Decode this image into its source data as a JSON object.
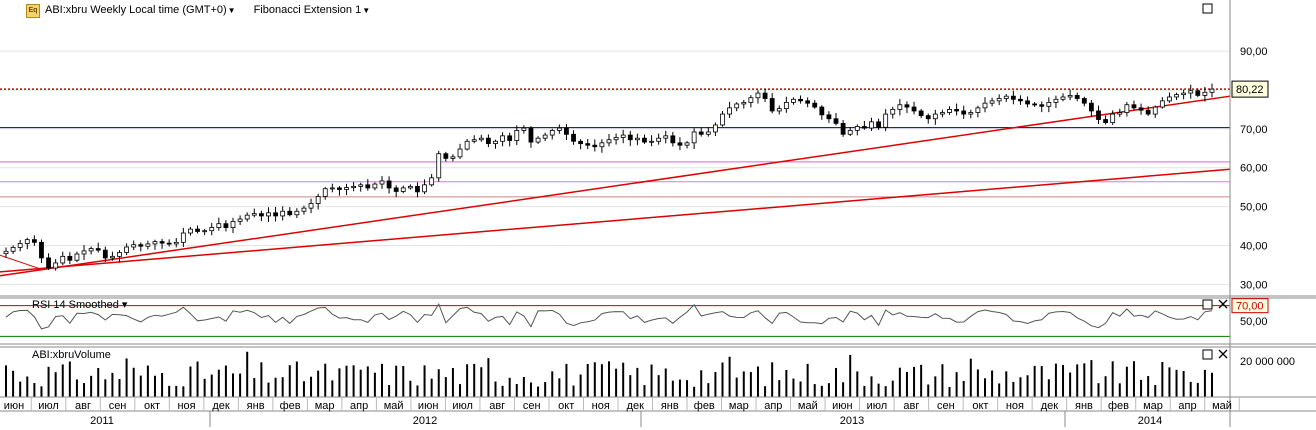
{
  "toolbar": {
    "logo_text": "Eq",
    "symbol_label": "ABI:xbru Weekly Local time (GMT+0)",
    "study_label": "Fibonacci Extension 1"
  },
  "colors": {
    "candle_body": "#000000",
    "fib_lines": [
      "#cc0000",
      "#000099",
      "#e060e0",
      "#d080d0",
      "#cc8888",
      "#66aa66"
    ],
    "trendline": "#dd0000",
    "price_marker": "#cc0000",
    "grid": "#e4e4e4",
    "rsi_line": "#555555",
    "rsi_ob": "#cc0000",
    "rsi_os": "#007700"
  },
  "price_panel": {
    "y_ticks": [
      "90,00",
      "80,00",
      "70,00",
      "60,00",
      "50,00",
      "40,00",
      "30,00"
    ],
    "last_price": "80,22",
    "fib_levels": [
      80.22,
      70.3,
      61.5,
      56.4,
      52.5
    ],
    "trendline_a": {
      "from": [
        "2011-07",
        33.5
      ],
      "to": [
        "2014-05",
        78.0
      ]
    },
    "trendline_b": {
      "from": [
        "2011-05",
        33.0
      ],
      "to": [
        "2014-05",
        59.5
      ]
    }
  },
  "rsi_panel": {
    "title": "RSI 14 Smoothed",
    "y_ticks": [
      "70,00",
      "50,00"
    ],
    "overbought": 70,
    "oversold": 30
  },
  "volume_panel": {
    "title": "ABI:xbruVolume",
    "y_ticks": [
      "20 000 000"
    ]
  },
  "time_axis": {
    "months": [
      "июн",
      "июл",
      "авг",
      "сен",
      "окт",
      "ноя",
      "дек",
      "янв",
      "фев",
      "мар",
      "апр",
      "май",
      "июн",
      "июл",
      "авг",
      "сен",
      "окт",
      "ноя",
      "дек",
      "янв",
      "фев",
      "мар",
      "апр",
      "май",
      "июн",
      "июл",
      "авг",
      "сен",
      "окт",
      "ноя",
      "дек",
      "янв",
      "фев",
      "мар",
      "апр",
      "май"
    ],
    "years": [
      "2011",
      "2012",
      "2013",
      "2014"
    ]
  },
  "chart_data": {
    "type": "candlestick",
    "title": "ABI:xbru Weekly",
    "ylim": [
      27,
      98
    ],
    "closes": [
      38.5,
      39.5,
      40.5,
      41.5,
      40.8,
      36.8,
      34.2,
      35.5,
      37.2,
      36.2,
      37.8,
      38.6,
      39.2,
      38.8,
      36.8,
      37.2,
      38.2,
      39.6,
      40.2,
      39.8,
      40.4,
      41.0,
      40.6,
      40.4,
      40.8,
      43.2,
      44.2,
      43.6,
      43.8,
      44.6,
      45.6,
      44.6,
      46.2,
      46.8,
      47.8,
      48.2,
      47.6,
      48.4,
      47.6,
      48.8,
      47.9,
      48.8,
      49.6,
      50.8,
      52.6,
      54.6,
      54.8,
      54.4,
      54.9,
      55.2,
      55.6,
      54.8,
      55.8,
      56.6,
      54.8,
      53.9,
      54.8,
      55.2,
      53.8,
      55.6,
      57.4,
      63.6,
      62.4,
      62.8,
      64.8,
      66.8,
      67.2,
      67.6,
      66.2,
      66.8,
      68.2,
      67.0,
      69.6,
      70.2,
      66.6,
      67.6,
      68.4,
      69.6,
      70.2,
      68.6,
      66.8,
      66.2,
      65.8,
      65.4,
      66.4,
      67.2,
      67.8,
      68.4,
      67.2,
      67.6,
      66.6,
      66.8,
      67.6,
      68.2,
      66.4,
      65.8,
      66.4,
      69.2,
      68.6,
      69.2,
      71.0,
      73.8,
      75.4,
      76.4,
      76.8,
      78.0,
      79.2,
      77.8,
      74.6,
      75.2,
      76.8,
      77.6,
      77.2,
      76.6,
      75.6,
      73.6,
      72.6,
      71.4,
      68.6,
      69.6,
      70.6,
      70.2,
      71.8,
      70.4,
      73.8,
      75.0,
      76.2,
      75.6,
      74.6,
      73.4,
      72.6,
      73.8,
      74.2,
      75.0,
      74.6,
      73.8,
      74.2,
      75.4,
      76.6,
      77.2,
      77.8,
      78.4,
      77.6,
      77.2,
      76.4,
      76.2,
      75.8,
      76.8,
      77.6,
      78.2,
      78.6,
      77.8,
      76.6,
      74.6,
      72.4,
      71.6,
      73.8,
      74.2,
      76.2,
      75.4,
      74.8,
      73.8,
      75.6,
      77.2,
      78.2,
      78.8,
      79.2,
      79.8,
      78.6,
      79.4,
      80.22
    ]
  }
}
